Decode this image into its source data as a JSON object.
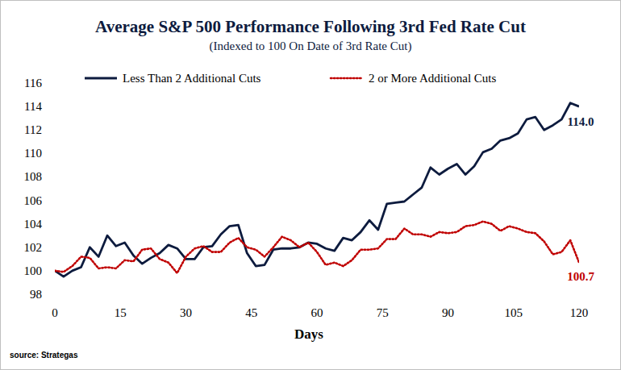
{
  "chart_data": {
    "type": "line",
    "title": "Average S&P 500 Performance Following 3rd Fed Rate Cut",
    "subtitle": "(Indexed to 100 On Date of 3rd Rate Cut)",
    "x_label": "Days",
    "source": "source: Strategas",
    "x": [
      0,
      2,
      4,
      6,
      8,
      10,
      12,
      14,
      16,
      18,
      20,
      22,
      24,
      26,
      28,
      30,
      32,
      34,
      36,
      38,
      40,
      42,
      44,
      46,
      48,
      50,
      52,
      54,
      56,
      58,
      60,
      62,
      64,
      66,
      68,
      70,
      72,
      74,
      76,
      78,
      80,
      82,
      84,
      86,
      88,
      90,
      92,
      94,
      96,
      98,
      100,
      102,
      104,
      106,
      108,
      110,
      112,
      114,
      116,
      118,
      120
    ],
    "series": [
      {
        "name": "Less Than 2 Additional Cuts",
        "color": "#0d1b3e",
        "line_style": "solid",
        "values": [
          100.0,
          99.5,
          100.0,
          100.3,
          102.0,
          101.2,
          103.0,
          102.1,
          102.4,
          101.3,
          100.6,
          101.1,
          101.5,
          102.2,
          101.9,
          101.0,
          101.0,
          102.0,
          102.1,
          103.1,
          103.8,
          103.9,
          101.5,
          100.4,
          100.5,
          101.8,
          101.9,
          101.9,
          102.0,
          102.4,
          102.3,
          101.9,
          101.7,
          102.8,
          102.6,
          103.3,
          104.3,
          103.5,
          105.7,
          105.8,
          105.9,
          106.5,
          107.1,
          108.8,
          108.2,
          108.7,
          109.1,
          108.2,
          108.9,
          110.1,
          110.4,
          111.1,
          111.3,
          111.7,
          112.9,
          113.1,
          112.0,
          112.4,
          112.9,
          114.3,
          114.0
        ]
      },
      {
        "name": "2 or More Additional Cuts",
        "color": "#c00000",
        "line_style": "dotted",
        "values": [
          100.0,
          99.9,
          100.4,
          101.2,
          101.1,
          100.2,
          100.3,
          100.2,
          100.9,
          100.8,
          101.8,
          101.9,
          101.0,
          100.7,
          99.8,
          101.2,
          101.9,
          102.1,
          101.6,
          101.6,
          102.4,
          102.8,
          102.0,
          101.8,
          101.2,
          102.0,
          102.9,
          102.6,
          102.0,
          102.4,
          101.6,
          100.5,
          100.7,
          100.4,
          100.9,
          101.8,
          101.8,
          101.9,
          102.7,
          102.7,
          103.6,
          103.1,
          103.1,
          102.9,
          103.3,
          103.2,
          103.3,
          103.8,
          103.9,
          104.2,
          104.0,
          103.4,
          103.8,
          103.6,
          103.3,
          103.2,
          102.5,
          101.4,
          101.6,
          102.6,
          100.7
        ]
      }
    ],
    "annotations": [
      "114.0",
      "100.7"
    ],
    "xlim": [
      0,
      120
    ],
    "xticks": [
      0,
      15,
      30,
      45,
      60,
      75,
      90,
      105,
      120
    ],
    "ylim": [
      98,
      116
    ],
    "yticks": [
      98,
      100,
      102,
      104,
      106,
      108,
      110,
      112,
      114,
      116
    ],
    "grid": false,
    "legend": "top"
  }
}
